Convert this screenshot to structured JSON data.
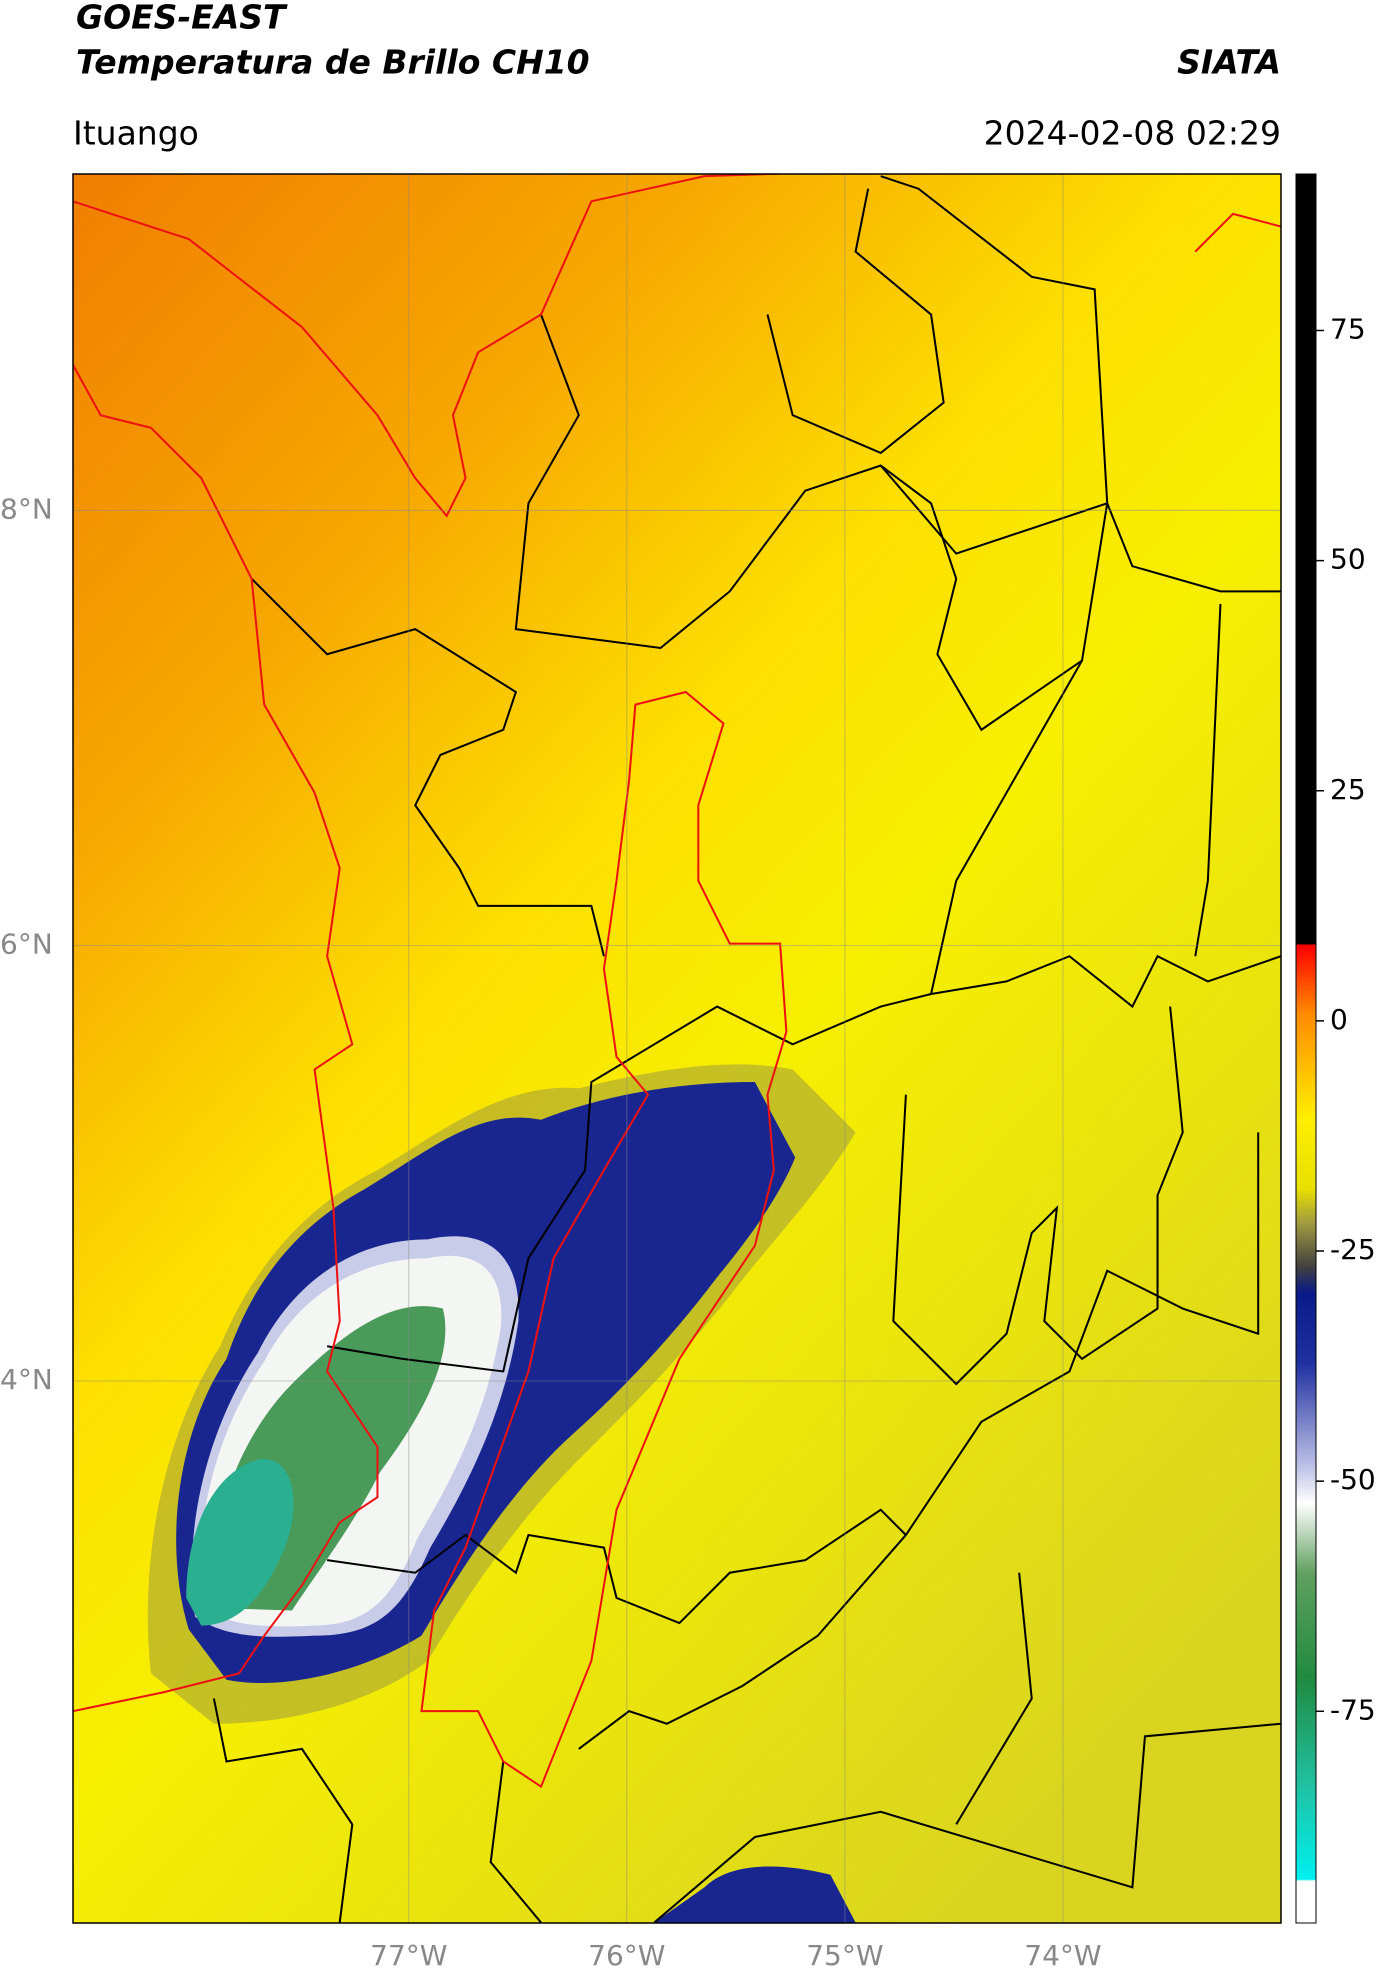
{
  "header": {
    "title": "GOES-EAST",
    "subtitle": "Temperatura de Brillo CH10",
    "source": "SIATA",
    "location": "Ituango",
    "datetime": "2024-02-08 02:29"
  },
  "map": {
    "lonlim": [
      -78.54,
      -73.0
    ],
    "latlim": [
      1.51,
      9.545
    ],
    "lon_ticks": [
      {
        "value": -77,
        "label": "77°W"
      },
      {
        "value": -76,
        "label": "76°W"
      },
      {
        "value": -75,
        "label": "75°W"
      },
      {
        "value": -74,
        "label": "74°W"
      }
    ],
    "lat_ticks": [
      {
        "value": 8,
        "label": "8°N"
      },
      {
        "value": 6,
        "label": "6°N"
      },
      {
        "value": 4,
        "label": "4°N"
      }
    ],
    "grid": true
  },
  "colorbar": {
    "lim": [
      -98,
      92
    ],
    "ticks": [
      75,
      50,
      25,
      0,
      -25,
      -50,
      -75
    ]
  }
}
